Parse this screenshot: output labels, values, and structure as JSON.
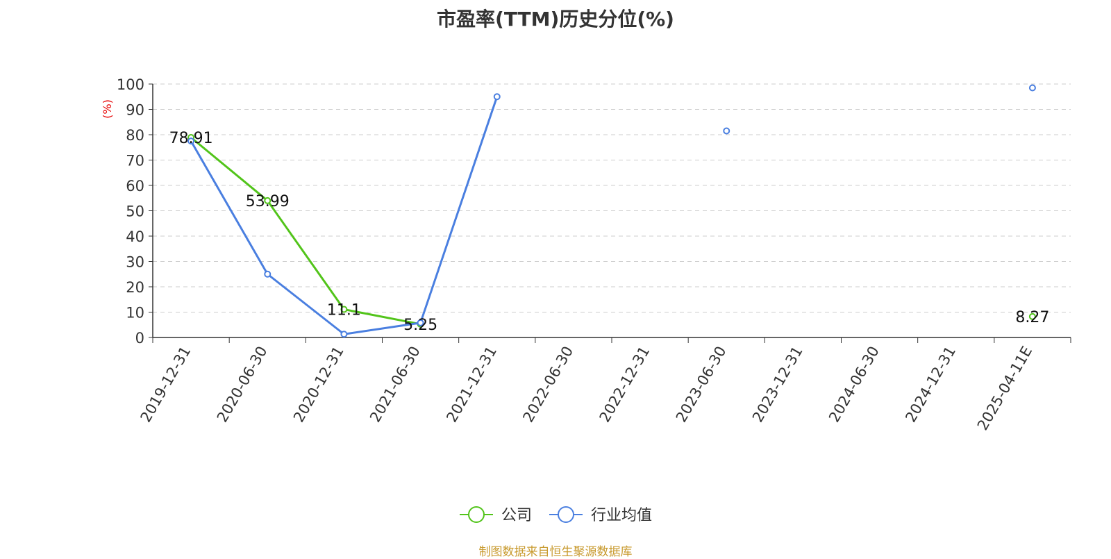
{
  "chart_data": {
    "type": "line",
    "title": "市盈率(TTM)历史分位(%)",
    "ylabel": "(%)",
    "ylim": [
      0,
      100
    ],
    "yticks": [
      0,
      10,
      20,
      30,
      40,
      50,
      60,
      70,
      80,
      90,
      100
    ],
    "categories": [
      "2019-12-31",
      "2020-06-30",
      "2020-12-31",
      "2021-06-30",
      "2021-12-31",
      "2022-06-30",
      "2022-12-31",
      "2023-06-30",
      "2023-12-31",
      "2024-06-30",
      "2024-12-31",
      "2025-04-11E"
    ],
    "series": [
      {
        "name": "公司",
        "color": "#52c41a",
        "values": [
          78.91,
          53.99,
          11.1,
          5.25,
          null,
          null,
          null,
          null,
          null,
          null,
          null,
          8.27
        ],
        "labels": [
          "78.91",
          "53.99",
          "11.1",
          "5.25",
          null,
          null,
          null,
          null,
          null,
          null,
          null,
          "8.27"
        ]
      },
      {
        "name": "行业均值",
        "color": "#4a7fe0",
        "values": [
          77.5,
          25,
          1.3,
          5.8,
          95,
          null,
          null,
          81.5,
          null,
          null,
          null,
          98.5
        ]
      }
    ],
    "grid": true,
    "legend": "bottom",
    "source": "制图数据来自恒生聚源数据库"
  }
}
